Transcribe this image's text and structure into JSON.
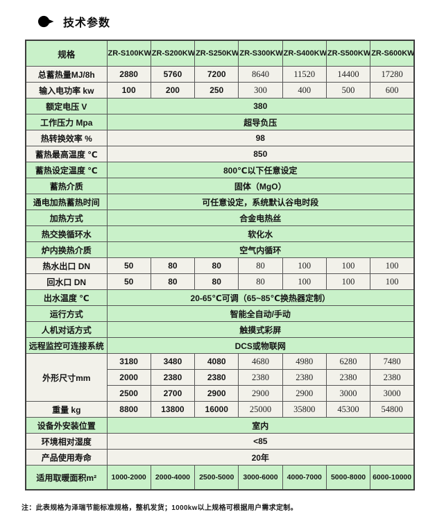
{
  "page": {
    "title": "技术参数",
    "note": "注：此表规格为泽瑞节能标准规格，整机发货；1000kw以上规格可根据用户需求定制。"
  },
  "colors": {
    "green": "#c9f1c9",
    "plain": "#f2f1ea",
    "border": "#555555",
    "outer": "#3c3c3c"
  },
  "table": {
    "columns": [
      "规格",
      "ZR-S100KW",
      "ZR-S200KW",
      "ZR-S250KW",
      "ZR-S300KW",
      "ZR-S400KW",
      "ZR-S500KW",
      "ZR-S600KW"
    ],
    "rows": [
      {
        "label": "总蓄热量MJ/8h",
        "bg": "plain",
        "values": [
          "2880",
          "5760",
          "7200",
          "8640",
          "11520",
          "14400",
          "17280"
        ]
      },
      {
        "label": "输入电功率 kw",
        "bg": "plain",
        "values": [
          "100",
          "200",
          "250",
          "300",
          "400",
          "500",
          "600"
        ]
      },
      {
        "label": "额定电压 V",
        "bg": "green",
        "span": "380"
      },
      {
        "label": "工作压力 Mpa",
        "bg": "green",
        "span": "超导负压"
      },
      {
        "label": "热转换效率 %",
        "bg": "plain",
        "span": "98"
      },
      {
        "label": "蓄热最高温度 ℃",
        "bg": "plain",
        "span": "850"
      },
      {
        "label": "蓄热设定温度 ℃",
        "bg": "green",
        "span": "800℃以下任意设定"
      },
      {
        "label": "蓄热介质",
        "bg": "green",
        "span": "固体（MgO）"
      },
      {
        "label": "通电加热蓄热时间",
        "bg": "green",
        "span": "可任意设定，系统默认谷电时段"
      },
      {
        "label": "加热方式",
        "bg": "green",
        "span": "合金电热丝"
      },
      {
        "label": "热交换循环水",
        "bg": "green",
        "span": "软化水"
      },
      {
        "label": "炉内换热介质",
        "bg": "green",
        "span": "空气内循环"
      },
      {
        "label": "热水出口 DN",
        "bg": "plain",
        "values": [
          "50",
          "80",
          "80",
          "80",
          "100",
          "100",
          "100"
        ]
      },
      {
        "label": "回水口 DN",
        "bg": "plain",
        "values": [
          "50",
          "80",
          "80",
          "80",
          "100",
          "100",
          "100"
        ]
      },
      {
        "label": "出水温度 ℃",
        "bg": "green",
        "span": "20-65℃可调（65~85℃换热器定制）"
      },
      {
        "label": "运行方式",
        "bg": "green",
        "span": "智能全自动/手动"
      },
      {
        "label": "人机对话方式",
        "bg": "green",
        "span": "触摸式彩屏"
      },
      {
        "label": "远程监控可连接系统",
        "bg": "green",
        "span": "DCS或物联网"
      },
      {
        "label": "外形尺寸mm",
        "bg": "plain",
        "multi": [
          [
            "3180",
            "3480",
            "4080",
            "4680",
            "4980",
            "6280",
            "7480"
          ],
          [
            "2000",
            "2380",
            "2380",
            "2380",
            "2380",
            "2380",
            "2380"
          ],
          [
            "2500",
            "2700",
            "2900",
            "2900",
            "2900",
            "3000",
            "3000"
          ]
        ]
      },
      {
        "label": "重量 kg",
        "bg": "plain",
        "values": [
          "8800",
          "13800",
          "16000",
          "25000",
          "35800",
          "45300",
          "54800"
        ]
      },
      {
        "label": "设备外安装位置",
        "bg": "green",
        "span": "室内"
      },
      {
        "label": "环境相对湿度",
        "bg": "plain",
        "span": "<85"
      },
      {
        "label": "产品使用寿命",
        "bg": "plain",
        "span": "20年"
      },
      {
        "label": "适用取暖面积m²",
        "bg": "green",
        "values": [
          "1000-2000",
          "2000-4000",
          "2500-5000",
          "3000-6000",
          "4000-7000",
          "5000-8000",
          "6000-10000"
        ]
      }
    ]
  }
}
